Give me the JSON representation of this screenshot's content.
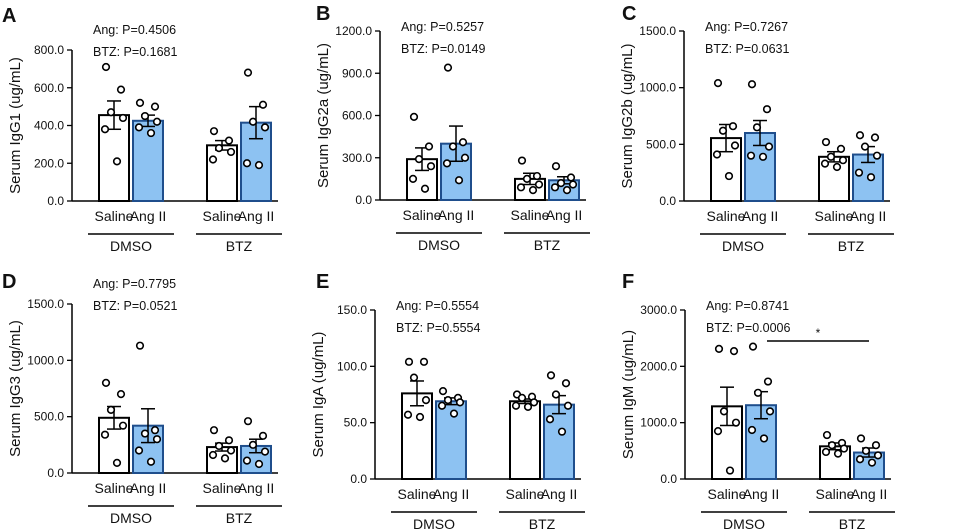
{
  "colors": {
    "saline_fill": "#ffffff",
    "ang_fill": "#8dc2f2",
    "ang_stroke": "#1f4e8c",
    "saline_stroke": "#000000"
  },
  "chart_data": [
    {
      "type": "bar",
      "panel": "A",
      "ylabel": "Serum IgG1 (ug/mL)",
      "ylim": [
        0,
        800
      ],
      "yticks": [
        "0.0",
        "200.0",
        "400.0",
        "600.0",
        "800.0"
      ],
      "stats": [
        "Ang: P=0.4506",
        "BTZ: P=0.1681"
      ],
      "groups": [
        "DMSO",
        "BTZ"
      ],
      "categories": [
        "Saline",
        "Ang II",
        "Saline",
        "Ang II"
      ],
      "series": [
        {
          "name": "DMSO Saline",
          "mean": 455,
          "sem": 75,
          "points": [
            710,
            590,
            470,
            440,
            380,
            210
          ]
        },
        {
          "name": "DMSO Ang II",
          "mean": 425,
          "sem": 30,
          "points": [
            520,
            500,
            450,
            420,
            390,
            360
          ]
        },
        {
          "name": "BTZ Saline",
          "mean": 295,
          "sem": 25,
          "points": [
            370,
            320,
            280,
            260,
            220
          ]
        },
        {
          "name": "BTZ Ang II",
          "mean": 415,
          "sem": 85,
          "points": [
            680,
            510,
            420,
            390,
            200,
            190
          ]
        }
      ]
    },
    {
      "type": "bar",
      "panel": "B",
      "ylabel": "Serum IgG2a (ug/mL)",
      "ylim": [
        0,
        1200
      ],
      "yticks": [
        "0.0",
        "300.0",
        "600.0",
        "900.0",
        "1200.0"
      ],
      "stats": [
        "Ang: P=0.5257",
        "BTZ: P=0.0149"
      ],
      "groups": [
        "DMSO",
        "BTZ"
      ],
      "categories": [
        "Saline",
        "Ang II",
        "Saline",
        "Ang II"
      ],
      "series": [
        {
          "name": "DMSO Saline",
          "mean": 290,
          "sem": 80,
          "points": [
            590,
            380,
            290,
            240,
            150,
            80
          ]
        },
        {
          "name": "DMSO Ang II",
          "mean": 400,
          "sem": 125,
          "points": [
            940,
            410,
            380,
            300,
            260,
            140
          ]
        },
        {
          "name": "BTZ Saline",
          "mean": 150,
          "sem": 40,
          "points": [
            280,
            170,
            150,
            110,
            90,
            70
          ]
        },
        {
          "name": "BTZ Ang II",
          "mean": 140,
          "sem": 25,
          "points": [
            240,
            160,
            120,
            110,
            90,
            70
          ]
        }
      ]
    },
    {
      "type": "bar",
      "panel": "C",
      "ylabel": "Serum IgG2b (ug/mL)",
      "ylim": [
        0,
        1500
      ],
      "yticks": [
        "0.0",
        "500.0",
        "1000.0",
        "1500.0"
      ],
      "stats": [
        "Ang: P=0.7267",
        "BTZ: P=0.0631"
      ],
      "groups": [
        "DMSO",
        "BTZ"
      ],
      "categories": [
        "Saline",
        "Ang II",
        "Saline",
        "Ang II"
      ],
      "series": [
        {
          "name": "DMSO Saline",
          "mean": 555,
          "sem": 120,
          "points": [
            1040,
            660,
            620,
            490,
            410,
            220
          ]
        },
        {
          "name": "DMSO Ang II",
          "mean": 600,
          "sem": 110,
          "points": [
            1030,
            810,
            650,
            480,
            400,
            390
          ]
        },
        {
          "name": "BTZ Saline",
          "mean": 390,
          "sem": 45,
          "points": [
            520,
            460,
            390,
            360,
            330,
            300
          ]
        },
        {
          "name": "BTZ Ang II",
          "mean": 410,
          "sem": 70,
          "points": [
            580,
            560,
            480,
            400,
            250,
            210
          ]
        }
      ]
    },
    {
      "type": "bar",
      "panel": "D",
      "ylabel": "Serum IgG3 (ug/mL)",
      "ylim": [
        0,
        1500
      ],
      "yticks": [
        "0.0",
        "500.0",
        "1000.0",
        "1500.0"
      ],
      "stats": [
        "Ang: P=0.7795",
        "BTZ: P=0.0521"
      ],
      "groups": [
        "DMSO",
        "BTZ"
      ],
      "categories": [
        "Saline",
        "Ang II",
        "Saline",
        "Ang II"
      ],
      "series": [
        {
          "name": "DMSO Saline",
          "mean": 490,
          "sem": 100,
          "points": [
            800,
            700,
            560,
            420,
            340,
            90
          ]
        },
        {
          "name": "DMSO Ang II",
          "mean": 420,
          "sem": 150,
          "points": [
            1130,
            380,
            350,
            300,
            200,
            100
          ]
        },
        {
          "name": "BTZ Saline",
          "mean": 230,
          "sem": 35,
          "points": [
            380,
            290,
            240,
            200,
            160,
            130
          ]
        },
        {
          "name": "BTZ Ang II",
          "mean": 240,
          "sem": 60,
          "points": [
            460,
            330,
            250,
            190,
            110,
            80
          ]
        }
      ]
    },
    {
      "type": "bar",
      "panel": "E",
      "ylabel": "Serum IgA (ug/mL)",
      "ylim": [
        0,
        150
      ],
      "yticks": [
        "0.0",
        "50.0",
        "100.0",
        "150.0"
      ],
      "stats": [
        "Ang: P=0.5554",
        "BTZ: P=0.5554"
      ],
      "groups": [
        "DMSO",
        "BTZ"
      ],
      "categories": [
        "Saline",
        "Ang II",
        "Saline",
        "Ang II"
      ],
      "series": [
        {
          "name": "DMSO Saline",
          "mean": 76,
          "sem": 11,
          "points": [
            104,
            104,
            90,
            70,
            57,
            55
          ]
        },
        {
          "name": "DMSO Ang II",
          "mean": 69,
          "sem": 3,
          "points": [
            78,
            72,
            70,
            68,
            65,
            58
          ]
        },
        {
          "name": "BTZ Saline",
          "mean": 69,
          "sem": 2,
          "points": [
            75,
            73,
            72,
            68,
            65,
            64
          ]
        },
        {
          "name": "BTZ Ang II",
          "mean": 66,
          "sem": 8,
          "points": [
            92,
            85,
            75,
            65,
            53,
            42
          ]
        }
      ]
    },
    {
      "type": "bar",
      "panel": "F",
      "ylabel": "Serum IgM (ug/mL)",
      "ylim": [
        0,
        3000
      ],
      "yticks": [
        "0.0",
        "1000.0",
        "2000.0",
        "3000.0"
      ],
      "stats": [
        "Ang: P=0.8741",
        "BTZ: P=0.0006"
      ],
      "groups": [
        "DMSO",
        "BTZ"
      ],
      "categories": [
        "Saline",
        "Ang II",
        "Saline",
        "Ang II"
      ],
      "annotation": "*",
      "series": [
        {
          "name": "DMSO Saline",
          "mean": 1290,
          "sem": 340,
          "points": [
            2310,
            2270,
            1200,
            1000,
            850,
            150
          ]
        },
        {
          "name": "DMSO Ang II",
          "mean": 1310,
          "sem": 240,
          "points": [
            2350,
            1730,
            1530,
            1200,
            870,
            720
          ]
        },
        {
          "name": "BTZ Saline",
          "mean": 580,
          "sem": 60,
          "points": [
            780,
            640,
            600,
            540,
            480,
            450
          ]
        },
        {
          "name": "BTZ Ang II",
          "mean": 470,
          "sem": 80,
          "points": [
            720,
            600,
            500,
            420,
            350,
            290
          ]
        }
      ]
    }
  ]
}
